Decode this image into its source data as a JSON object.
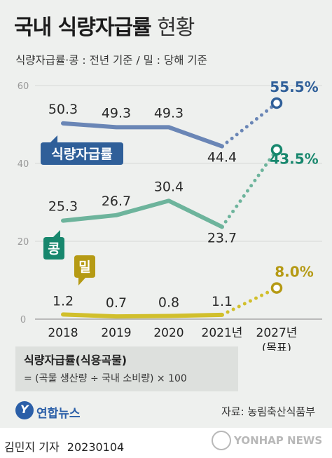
{
  "title": {
    "bold": "국내 식량자급률",
    "light": "현황"
  },
  "subtitle": "식량자급률·콩 : 전년 기준 / 밀 : 당해 기준",
  "chart_data": {
    "type": "line",
    "categories": [
      "2018",
      "2019",
      "2020",
      "2021년",
      "2027년"
    ],
    "category_sub": [
      "",
      "",
      "",
      "",
      "(목표)"
    ],
    "ylim": [
      0,
      60
    ],
    "yticks": [
      "0",
      "20",
      "40",
      "60"
    ],
    "grid": true,
    "series": [
      {
        "name": "식량자급률",
        "values": [
          50.3,
          49.3,
          49.3,
          44.4,
          55.5
        ],
        "labels": [
          "50.3",
          "49.3",
          "49.3",
          "44.4",
          "55.5%"
        ],
        "color": "#6a86b6",
        "target_color": "#2f5f99"
      },
      {
        "name": "콩",
        "values": [
          25.3,
          26.7,
          30.4,
          23.7,
          43.5
        ],
        "labels": [
          "25.3",
          "26.7",
          "30.4",
          "23.7",
          "43.5%"
        ],
        "color": "#6db49c",
        "target_color": "#17876d"
      },
      {
        "name": "밀",
        "values": [
          1.2,
          0.7,
          0.8,
          1.1,
          8.0
        ],
        "labels": [
          "1.2",
          "0.7",
          "0.8",
          "1.1",
          "8.0%"
        ],
        "color": "#d1bf2c",
        "target_color": "#b59a14"
      }
    ]
  },
  "formula": {
    "title": "식량자급률(식용곡물)",
    "body": "= (곡물 생산량 ÷ 국내 소비량) × 100"
  },
  "logo": {
    "mark": "Y",
    "text": "연합뉴스"
  },
  "source": "자료: 농림축산식품부",
  "byline": {
    "author": "김민지 기자",
    "date": "20230104"
  },
  "watermark": {
    "text": "YONHAP NEWS"
  }
}
